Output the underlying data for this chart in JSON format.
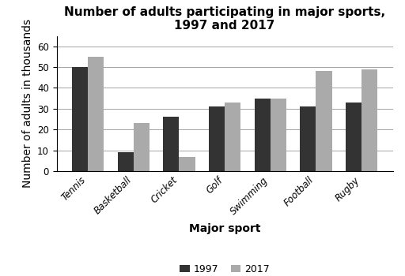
{
  "title": "Number of adults participating in major sports,\n1997 and 2017",
  "xlabel": "Major sport",
  "ylabel": "Number of adults in thousands",
  "categories": [
    "Tennis",
    "Basketball",
    "Cricket",
    "Golf",
    "Swimming",
    "Football",
    "Rugby"
  ],
  "values_1997": [
    50,
    9,
    26,
    31,
    35,
    31,
    33
  ],
  "values_2017": [
    55,
    23,
    7,
    33,
    35,
    48,
    49
  ],
  "color_1997": "#333333",
  "color_2017": "#aaaaaa",
  "legend_labels": [
    "1997",
    "2017"
  ],
  "ylim": [
    0,
    65
  ],
  "yticks": [
    0,
    10,
    20,
    30,
    40,
    50,
    60
  ],
  "bar_width": 0.35,
  "title_fontsize": 11,
  "axis_label_fontsize": 10,
  "tick_fontsize": 8.5,
  "legend_fontsize": 9
}
